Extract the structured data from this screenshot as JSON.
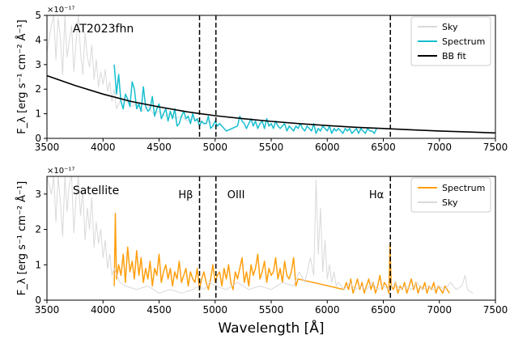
{
  "figure": {
    "xlabel": "Wavelength [Å]"
  },
  "chart_data": [
    {
      "type": "line",
      "panel": "top",
      "annotation": "AT2023fhn",
      "ylabel": "F_λ [erg s⁻¹ cm⁻² Å⁻¹]",
      "exponent_label": "×10⁻¹⁷",
      "xlim": [
        3500,
        7500
      ],
      "ylim": [
        0,
        5
      ],
      "xticks": [
        3500,
        4000,
        4500,
        5000,
        5500,
        6000,
        6500,
        7000,
        7500
      ],
      "yticks": [
        0,
        1,
        2,
        3,
        4,
        5
      ],
      "xtick_labels_shown": false,
      "legend_position": "upper right",
      "vlines": [
        4861,
        5007,
        6563
      ],
      "series": [
        {
          "name": "Sky",
          "color": "#d9d9d9",
          "x": [
            3500,
            3540,
            3560,
            3580,
            3600,
            3620,
            3640,
            3660,
            3680,
            3700,
            3720,
            3740,
            3760,
            3780,
            3800,
            3820,
            3840,
            3860,
            3880,
            3900,
            3920,
            3940,
            3960,
            3980,
            4000,
            4020,
            4040,
            4060,
            4080,
            4100,
            4120,
            4150,
            4200,
            4250,
            4300,
            4350,
            4400,
            4450,
            4500,
            4550,
            4600,
            4650,
            4700,
            4750,
            4800,
            4850,
            4900,
            4950,
            5000
          ],
          "y": [
            3.5,
            4.6,
            5.0,
            3.2,
            4.9,
            4.1,
            2.6,
            5.0,
            3.3,
            4.0,
            4.6,
            2.7,
            3.9,
            5.0,
            3.5,
            2.6,
            4.3,
            3.3,
            2.9,
            3.8,
            2.4,
            3.2,
            2.1,
            2.7,
            2.2,
            2.8,
            1.9,
            2.3,
            1.5,
            2.0,
            1.2,
            1.5,
            1.6,
            1.3,
            1.4,
            1.1,
            1.3,
            1.0,
            1.1,
            0.9,
            1.0,
            0.8,
            0.9,
            0.7,
            0.8,
            0.7,
            0.6,
            0.7,
            0.5
          ]
        },
        {
          "name": "Spectrum",
          "color": "#17becf",
          "x": [
            4100,
            4120,
            4140,
            4160,
            4180,
            4200,
            4220,
            4240,
            4260,
            4280,
            4300,
            4320,
            4340,
            4360,
            4380,
            4400,
            4420,
            4440,
            4460,
            4480,
            4500,
            4520,
            4540,
            4560,
            4580,
            4600,
            4620,
            4640,
            4660,
            4680,
            4700,
            4720,
            4740,
            4760,
            4780,
            4800,
            4820,
            4840,
            4860,
            4880,
            4900,
            4920,
            4940,
            4960,
            4980,
            5000,
            5020,
            5040,
            5100,
            5150,
            5200,
            5220,
            5240,
            5260,
            5280,
            5300,
            5320,
            5340,
            5360,
            5380,
            5400,
            5420,
            5440,
            5460,
            5480,
            5500,
            5520,
            5540,
            5560,
            5580,
            5600,
            5620,
            5640,
            5660,
            5680,
            5700,
            5720,
            5740,
            5760,
            5780,
            5800,
            5820,
            5840,
            5860,
            5880,
            5900,
            5920,
            5940,
            5960,
            5980,
            6000,
            6020,
            6040,
            6060,
            6080,
            6100,
            6120,
            6140,
            6160,
            6180,
            6200,
            6220,
            6240,
            6260,
            6280,
            6300,
            6320,
            6340,
            6360,
            6380,
            6400,
            6420,
            6440
          ],
          "y": [
            3.0,
            1.8,
            2.6,
            1.5,
            1.2,
            1.8,
            1.6,
            1.3,
            2.3,
            2.0,
            1.2,
            1.4,
            1.1,
            2.1,
            1.3,
            1.1,
            1.2,
            1.7,
            0.9,
            1.2,
            1.4,
            0.8,
            1.0,
            1.2,
            0.7,
            1.1,
            0.8,
            1.2,
            0.5,
            0.6,
            0.9,
            1.1,
            0.8,
            0.9,
            0.6,
            1.0,
            0.7,
            0.8,
            0.5,
            0.7,
            0.6,
            0.6,
            0.9,
            0.4,
            0.5,
            0.7,
            0.5,
            0.6,
            0.3,
            0.4,
            0.5,
            0.9,
            0.7,
            0.6,
            0.4,
            0.6,
            0.8,
            0.5,
            0.7,
            0.4,
            0.6,
            0.7,
            0.4,
            0.8,
            0.5,
            0.6,
            0.4,
            0.7,
            0.5,
            0.4,
            0.5,
            0.6,
            0.3,
            0.5,
            0.4,
            0.3,
            0.5,
            0.4,
            0.6,
            0.4,
            0.3,
            0.5,
            0.4,
            0.3,
            0.6,
            0.2,
            0.4,
            0.3,
            0.5,
            0.4,
            0.3,
            0.5,
            0.2,
            0.4,
            0.3,
            0.4,
            0.3,
            0.2,
            0.4,
            0.3,
            0.4,
            0.2,
            0.3,
            0.4,
            0.2,
            0.4,
            0.3,
            0.2,
            0.4,
            0.3,
            0.3,
            0.2,
            0.4
          ]
        },
        {
          "name": "BB fit",
          "color": "#000000",
          "x": [
            3500,
            3750,
            4000,
            4250,
            4500,
            4750,
            5000,
            5250,
            5500,
            5750,
            6000,
            6250,
            6500,
            6750,
            7000,
            7250,
            7500
          ],
          "y": [
            2.55,
            2.15,
            1.8,
            1.5,
            1.28,
            1.08,
            0.92,
            0.8,
            0.69,
            0.6,
            0.52,
            0.45,
            0.4,
            0.35,
            0.3,
            0.26,
            0.22
          ]
        }
      ]
    },
    {
      "type": "line",
      "panel": "bottom",
      "annotation": "Satellite",
      "ylabel": "F_λ [erg s⁻¹ cm⁻² Å⁻¹]",
      "exponent_label": "×10⁻¹⁷",
      "xlim": [
        3500,
        7500
      ],
      "ylim": [
        0,
        3.5
      ],
      "xticks": [
        3500,
        4000,
        4500,
        5000,
        5500,
        6000,
        6500,
        7000,
        7500
      ],
      "yticks": [
        0,
        1,
        2,
        3
      ],
      "legend_position": "upper right",
      "vlines": [
        4861,
        5007,
        6563
      ],
      "line_labels": [
        {
          "text": "Hβ",
          "x": 4861
        },
        {
          "text": "OIII",
          "x": 5007
        },
        {
          "text": "Hα",
          "x": 6563
        }
      ],
      "series": [
        {
          "name": "Spectrum",
          "color": "#ff9f0e",
          "x": [
            4100,
            4110,
            4120,
            4140,
            4160,
            4180,
            4200,
            4220,
            4240,
            4260,
            4280,
            4300,
            4320,
            4340,
            4360,
            4380,
            4400,
            4420,
            4440,
            4460,
            4480,
            4500,
            4520,
            4540,
            4560,
            4580,
            4600,
            4620,
            4640,
            4660,
            4680,
            4700,
            4720,
            4740,
            4760,
            4780,
            4800,
            4820,
            4840,
            4860,
            4880,
            4900,
            4920,
            4940,
            4960,
            4980,
            5000,
            5020,
            5040,
            5060,
            5080,
            5100,
            5120,
            5140,
            5160,
            5180,
            5200,
            5220,
            5240,
            5260,
            5280,
            5300,
            5320,
            5340,
            5360,
            5380,
            5400,
            5420,
            5440,
            5460,
            5480,
            5500,
            5520,
            5540,
            5560,
            5580,
            5600,
            5620,
            5640,
            5660,
            5680,
            5700,
            5720,
            5740,
            6150,
            6170,
            6190,
            6210,
            6230,
            6250,
            6270,
            6290,
            6310,
            6330,
            6350,
            6370,
            6390,
            6410,
            6430,
            6450,
            6470,
            6490,
            6510,
            6530,
            6550,
            6560,
            6570,
            6590,
            6610,
            6630,
            6650,
            6670,
            6690,
            6710,
            6730,
            6750,
            6770,
            6790,
            6810,
            6830,
            6850,
            6870,
            6890,
            6910,
            6930,
            6950,
            6970,
            6990,
            7010,
            7030,
            7050,
            7070,
            7090
          ],
          "y": [
            0.4,
            2.45,
            0.6,
            1.0,
            0.7,
            1.3,
            0.5,
            1.5,
            0.8,
            1.1,
            0.6,
            1.4,
            0.7,
            1.2,
            0.5,
            0.9,
            0.6,
            1.1,
            0.4,
            0.9,
            0.7,
            1.3,
            0.5,
            0.8,
            1.0,
            0.6,
            0.9,
            0.4,
            0.8,
            0.6,
            1.1,
            0.5,
            0.7,
            0.9,
            0.4,
            0.8,
            0.6,
            0.5,
            0.9,
            0.3,
            0.6,
            0.8,
            0.5,
            0.3,
            0.6,
            1.0,
            0.5,
            0.7,
            0.8,
            0.4,
            0.9,
            0.6,
            1.0,
            0.5,
            0.3,
            0.8,
            0.6,
            0.9,
            1.2,
            0.5,
            0.8,
            0.4,
            1.0,
            0.7,
            0.9,
            1.3,
            0.6,
            0.8,
            1.1,
            0.5,
            0.9,
            0.7,
            0.8,
            1.2,
            0.6,
            0.9,
            0.5,
            1.1,
            0.7,
            0.6,
            0.8,
            1.2,
            0.4,
            0.6,
            0.3,
            0.5,
            0.3,
            0.6,
            0.2,
            0.4,
            0.6,
            0.3,
            0.5,
            0.2,
            0.4,
            0.6,
            0.3,
            0.5,
            0.2,
            0.4,
            0.7,
            0.3,
            0.5,
            0.4,
            0.2,
            1.6,
            0.4,
            0.3,
            0.5,
            0.2,
            0.4,
            0.3,
            0.5,
            0.2,
            0.4,
            0.6,
            0.3,
            0.5,
            0.2,
            0.4,
            0.3,
            0.5,
            0.2,
            0.4,
            0.3,
            0.5,
            0.2,
            0.4,
            0.3,
            0.2,
            0.4,
            0.3,
            0.2
          ]
        },
        {
          "name": "Sky",
          "color": "#d9d9d9",
          "x": [
            3500,
            3540,
            3560,
            3580,
            3600,
            3620,
            3640,
            3660,
            3680,
            3700,
            3720,
            3740,
            3760,
            3780,
            3800,
            3820,
            3840,
            3860,
            3880,
            3900,
            3920,
            3940,
            3960,
            3980,
            4000,
            4020,
            4040,
            4060,
            4080,
            4100,
            4150,
            4200,
            4300,
            4400,
            4500,
            4600,
            4700,
            4800,
            4850,
            4900,
            4950,
            5000,
            5100,
            5200,
            5300,
            5400,
            5500,
            5600,
            5700,
            5750,
            5800,
            5850,
            5880,
            5900,
            5920,
            5940,
            5960,
            5980,
            6000,
            6020,
            6040,
            6060,
            6080,
            6100,
            6150,
            6200,
            6250,
            6300,
            6350,
            6400,
            6450,
            6500,
            6550,
            6600,
            6650,
            6700,
            6750,
            6800,
            6850,
            6900,
            6950,
            7000,
            7050,
            7100,
            7150,
            7200,
            7230,
            7250,
            7300
          ],
          "y": [
            3.5,
            3.0,
            3.5,
            2.2,
            3.5,
            2.8,
            1.8,
            3.5,
            2.5,
            3.3,
            3.5,
            1.9,
            2.9,
            3.5,
            2.4,
            3.1,
            1.7,
            2.6,
            2.0,
            2.9,
            1.5,
            2.2,
            1.6,
            2.0,
            1.2,
            1.7,
            0.9,
            1.3,
            0.7,
            0.9,
            0.5,
            0.4,
            0.3,
            0.4,
            0.2,
            0.3,
            0.2,
            0.3,
            0.4,
            0.3,
            0.5,
            0.4,
            0.3,
            0.5,
            0.3,
            0.4,
            0.3,
            0.5,
            0.4,
            0.8,
            0.5,
            1.2,
            0.7,
            3.4,
            1.3,
            2.6,
            0.8,
            1.7,
            0.6,
            1.0,
            0.5,
            0.8,
            0.4,
            0.5,
            0.3,
            0.5,
            0.3,
            0.4,
            0.3,
            0.5,
            0.3,
            0.4,
            0.3,
            0.5,
            0.3,
            0.4,
            0.3,
            0.5,
            0.3,
            0.4,
            0.3,
            0.4,
            0.3,
            0.5,
            0.3,
            0.4,
            0.7,
            0.3,
            0.2
          ]
        }
      ]
    }
  ]
}
